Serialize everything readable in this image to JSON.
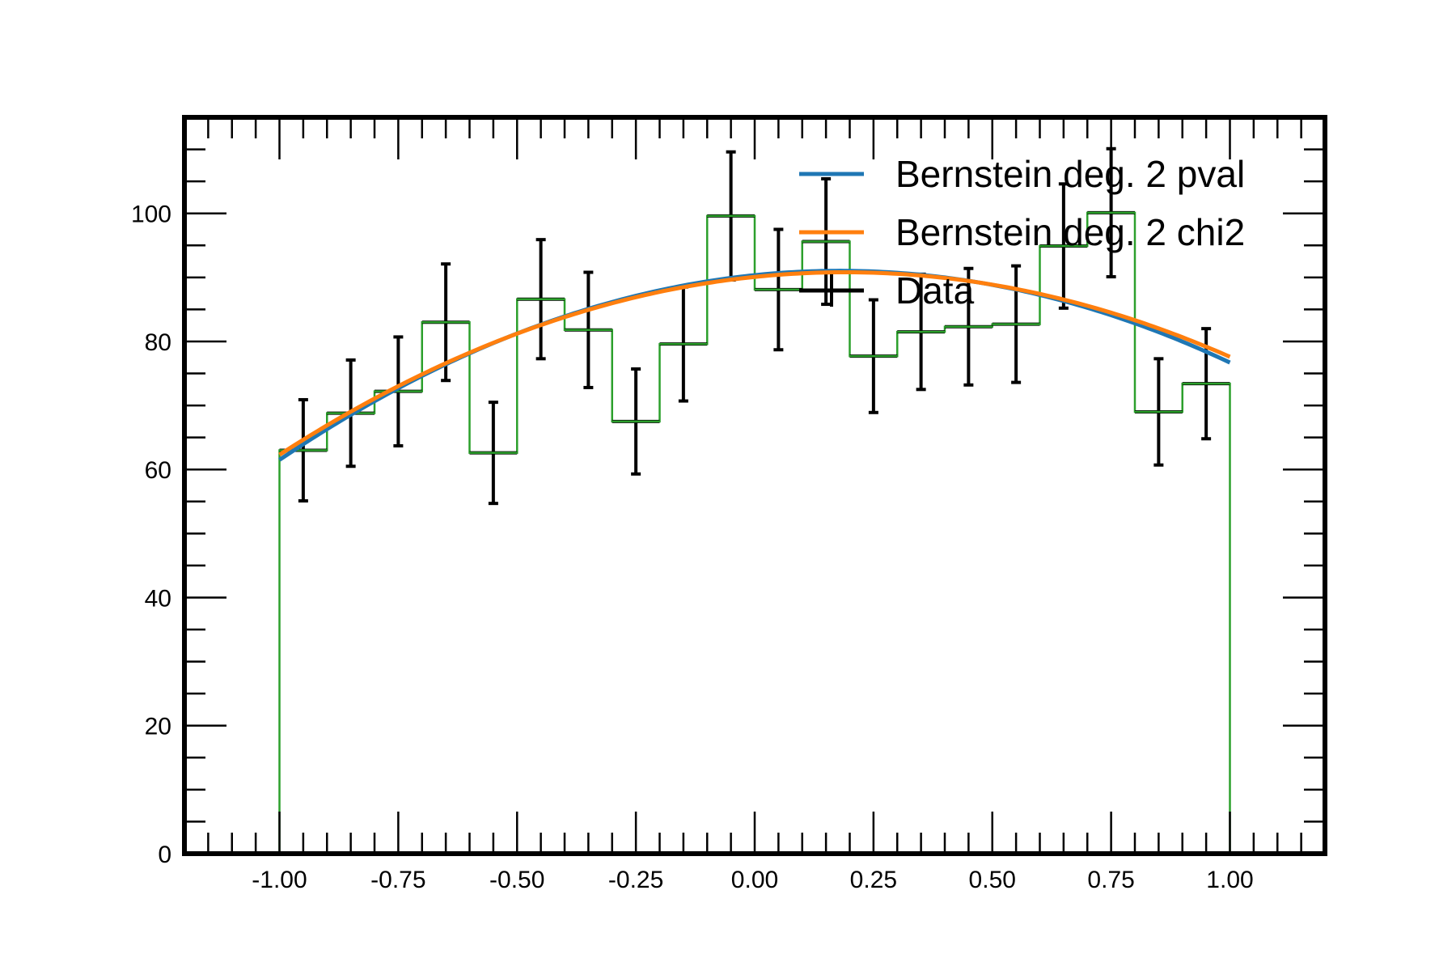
{
  "chart_data": {
    "type": "line",
    "xlim": [
      -1.2,
      1.2
    ],
    "ylim": [
      0,
      115
    ],
    "x_ticks": [
      "-1.00",
      "-0.75",
      "-0.50",
      "-0.25",
      "0.00",
      "0.25",
      "0.50",
      "0.75",
      "1.00"
    ],
    "x_tick_values": [
      -1.0,
      -0.75,
      -0.5,
      -0.25,
      0.0,
      0.25,
      0.5,
      0.75,
      1.0
    ],
    "y_ticks": [
      "0",
      "20",
      "40",
      "60",
      "80",
      "100"
    ],
    "y_tick_values": [
      0,
      20,
      40,
      60,
      80,
      100
    ],
    "legend_placement": "top-right",
    "grid": false,
    "bin_edges": [
      -1.0,
      -0.9,
      -0.8,
      -0.7,
      -0.6,
      -0.5,
      -0.4,
      -0.3,
      -0.2,
      -0.1,
      0.0,
      0.1,
      0.2,
      0.3,
      0.4,
      0.5,
      0.6,
      0.7,
      0.8,
      0.9,
      1.0
    ],
    "series": [
      {
        "name": "Bernstein deg. 2 pval",
        "kind": "curve",
        "color": "#1f77b4",
        "bernstein_coeffs": [
          61.5,
          111.6,
          76.7
        ]
      },
      {
        "name": "Bernstein deg. 2 chi2",
        "kind": "curve",
        "color": "#ff7f0e",
        "bernstein_coeffs": [
          62.3,
          110.2,
          77.6
        ]
      },
      {
        "name": "Data",
        "kind": "errorbar",
        "color": "#000000",
        "x": [
          -0.95,
          -0.85,
          -0.75,
          -0.65,
          -0.55,
          -0.45,
          -0.35,
          -0.25,
          -0.15,
          -0.05,
          0.05,
          0.15,
          0.25,
          0.35,
          0.45,
          0.55,
          0.65,
          0.75,
          0.85,
          0.95
        ],
        "values": [
          63,
          68.8,
          72.2,
          83,
          62.6,
          86.6,
          81.8,
          67.5,
          79.6,
          99.6,
          88.1,
          95.6,
          77.7,
          81.5,
          82.3,
          82.7,
          94.9,
          100.1,
          69,
          73.4
        ],
        "yerr": [
          7.9,
          8.3,
          8.5,
          9.1,
          7.9,
          9.3,
          9.0,
          8.2,
          8.9,
          10.0,
          9.4,
          9.8,
          8.8,
          9.0,
          9.1,
          9.1,
          9.7,
          10.0,
          8.3,
          8.6
        ]
      },
      {
        "name": "",
        "kind": "step",
        "color": "#2ca02c",
        "values": [
          63,
          68.8,
          72.2,
          83,
          62.6,
          86.6,
          81.8,
          67.5,
          79.6,
          99.6,
          88.1,
          95.6,
          77.7,
          81.5,
          82.3,
          82.7,
          94.9,
          100.1,
          69,
          73.4
        ]
      }
    ]
  }
}
